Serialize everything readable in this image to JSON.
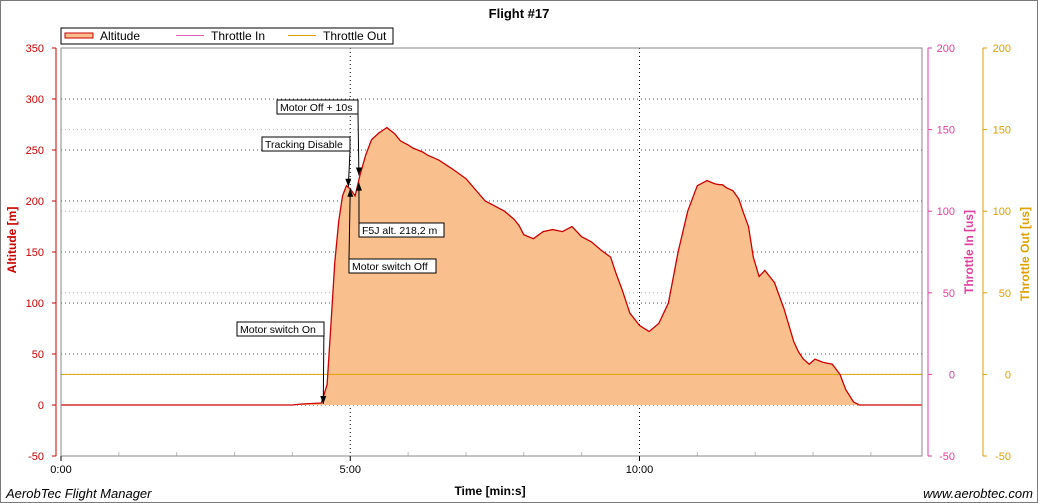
{
  "chart_data": {
    "type": "area",
    "title": "Flight #17",
    "xlabel": "Time [min:s]",
    "x_ticks": [
      "0:00",
      "5:00",
      "10:00"
    ],
    "x_range_seconds": [
      0,
      893
    ],
    "y_axes": {
      "altitude": {
        "label": "Altitude [m]",
        "range": [
          -50,
          350
        ],
        "ticks": [
          -50,
          0,
          50,
          100,
          150,
          200,
          250,
          300,
          350
        ],
        "color": "#cc0000"
      },
      "throttle_in": {
        "label": "Throttle In [us]",
        "range": [
          -50,
          200
        ],
        "ticks": [
          -50,
          0,
          50,
          100,
          150,
          200
        ],
        "color": "#e040a0"
      },
      "throttle_out": {
        "label": "Throttle Out [us]",
        "range": [
          -50,
          200
        ],
        "ticks": [
          -50,
          0,
          50,
          100,
          150,
          200
        ],
        "color": "#e0a000"
      }
    },
    "grid": true,
    "legend_placement": "top-left",
    "series": [
      {
        "name": "Altitude",
        "axis": "altitude",
        "color": "#cc0000",
        "fill": "#f9c08e",
        "x_seconds": [
          0,
          60,
          120,
          180,
          240,
          250,
          270,
          276,
          280,
          284,
          288,
          292,
          296,
          300,
          305,
          310,
          316,
          322,
          330,
          338,
          346,
          352,
          356,
          360,
          365,
          370,
          375,
          380,
          392,
          405,
          420,
          440,
          450,
          460,
          470,
          475,
          480,
          490,
          500,
          510,
          520,
          530,
          540,
          550,
          560,
          570,
          576,
          582,
          590,
          600,
          610,
          620,
          630,
          640,
          650,
          660,
          670,
          678,
          683,
          686,
          690,
          697,
          703,
          708,
          713,
          718,
          724,
          730,
          740,
          750,
          760,
          765,
          770,
          776,
          782,
          790,
          800,
          808,
          814,
          822,
          828,
          836,
          840,
          848,
          852,
          860,
          870,
          893
        ],
        "values": [
          0,
          0,
          0,
          0,
          0,
          1,
          2,
          20,
          80,
          140,
          180,
          205,
          215,
          212,
          205,
          225,
          245,
          260,
          267,
          272,
          266,
          259,
          257,
          255,
          252,
          250,
          248,
          245,
          240,
          232,
          222,
          200,
          195,
          190,
          182,
          176,
          167,
          163,
          170,
          172,
          170,
          175,
          165,
          160,
          152,
          145,
          128,
          113,
          90,
          78,
          72,
          80,
          100,
          150,
          190,
          215,
          220,
          217,
          216,
          216,
          213,
          210,
          202,
          188,
          175,
          145,
          126,
          132,
          120,
          94,
          62,
          52,
          45,
          40,
          45,
          42,
          40,
          30,
          15,
          3,
          0,
          0,
          0,
          0,
          0,
          0,
          0,
          0
        ]
      },
      {
        "name": "Throttle In",
        "axis": "throttle_in",
        "color": "#e060b0",
        "x_seconds": [],
        "values": []
      },
      {
        "name": "Throttle Out",
        "axis": "throttle_out",
        "color": "#e0a000",
        "x_seconds": [
          0,
          893
        ],
        "values": [
          0,
          0
        ]
      }
    ],
    "annotations": [
      {
        "text": "Motor switch On",
        "x_seconds": 272,
        "y_value": 1
      },
      {
        "text": "Motor switch Off",
        "x_seconds": 300,
        "y_value": 212
      },
      {
        "text": "Tracking Disable",
        "x_seconds": 298,
        "y_value": 214
      },
      {
        "text": "Motor Off + 10s",
        "x_seconds": 309,
        "y_value": 225
      },
      {
        "text": "F5J alt. 218,2 m",
        "x_seconds": 309,
        "y_value": 218
      }
    ]
  },
  "footer": {
    "left": "AerobTec Flight Manager",
    "right": "www.aerobtec.com"
  }
}
